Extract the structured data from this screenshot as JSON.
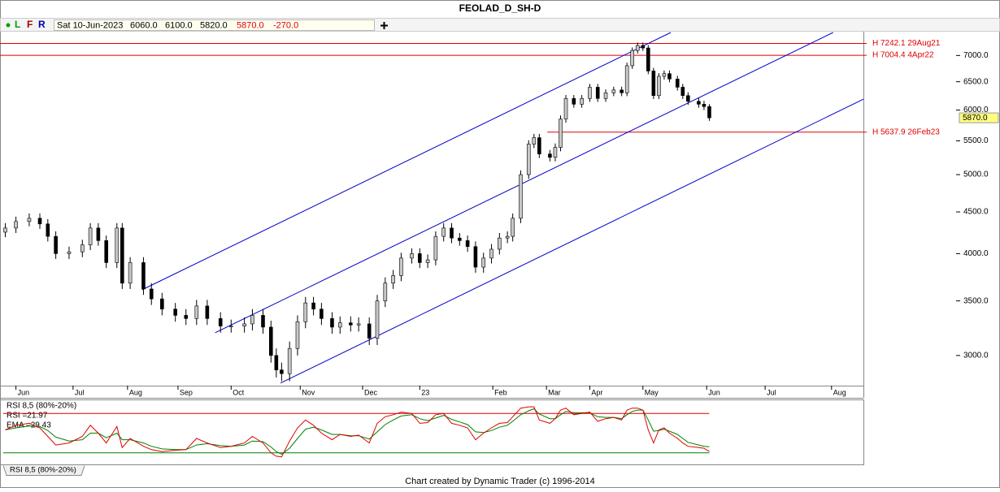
{
  "chart_data": [
    {
      "type": "candlestick",
      "title": "FEOLAD_D_SH-D",
      "toolbar": {
        "buttons": [
          "L",
          "F",
          "R"
        ],
        "date": "Sat 10-Jun-2023",
        "open": "6060.0",
        "high": "6100.0",
        "low": "5820.0",
        "close": "5870.0",
        "change": "-270.0"
      },
      "x": [
        -3,
        1,
        6,
        10,
        13,
        16,
        21,
        26,
        29,
        32,
        35,
        39,
        41,
        44,
        49,
        52,
        56,
        61,
        65,
        69,
        73,
        78,
        82,
        87,
        90,
        94,
        97,
        99,
        101,
        104,
        107,
        110,
        113,
        116,
        120,
        123,
        127,
        130,
        134,
        137,
        140,
        143,
        146,
        150,
        153,
        156,
        159,
        162,
        165,
        168,
        171,
        174,
        177,
        180,
        183,
        186,
        188,
        191,
        194,
        196,
        198,
        202,
        204,
        206,
        208,
        211,
        214,
        217,
        220,
        223,
        226,
        229,
        231,
        233,
        235,
        237,
        239,
        241,
        243,
        245,
        247,
        250,
        252,
        254,
        258,
        260,
        262
      ],
      "open": [
        4250,
        4300,
        4380,
        4420,
        4350,
        4200,
        4000,
        4020,
        4100,
        4300,
        4150,
        3900,
        4300,
        3680,
        3900,
        3620,
        3520,
        3420,
        3360,
        3330,
        3450,
        3330,
        3260,
        3260,
        3280,
        3360,
        3250,
        3000,
        2880,
        2850,
        3060,
        3300,
        3480,
        3420,
        3330,
        3250,
        3290,
        3270,
        3280,
        3150,
        3500,
        3680,
        3760,
        3950,
        4000,
        3900,
        3930,
        4200,
        4300,
        4180,
        4150,
        4080,
        3850,
        3950,
        4050,
        4180,
        4200,
        4420,
        5000,
        5450,
        5550,
        5300,
        5250,
        5400,
        5850,
        6200,
        6100,
        6200,
        6400,
        6200,
        6300,
        6350,
        6300,
        6800,
        7100,
        7200,
        7150,
        6700,
        6250,
        6600,
        6650,
        6550,
        6400,
        6250,
        6150,
        6100,
        6060
      ],
      "high": [
        4360,
        4440,
        4480,
        4480,
        4410,
        4260,
        4080,
        4160,
        4360,
        4360,
        4210,
        4360,
        4360,
        3960,
        3960,
        3680,
        3580,
        3480,
        3420,
        3510,
        3510,
        3390,
        3320,
        3340,
        3420,
        3420,
        3310,
        3060,
        2940,
        3120,
        3360,
        3540,
        3540,
        3480,
        3390,
        3350,
        3350,
        3340,
        3340,
        3560,
        3740,
        3820,
        4010,
        4060,
        4060,
        3990,
        4260,
        4360,
        4360,
        4240,
        4210,
        4140,
        4010,
        4110,
        4240,
        4260,
        4480,
        5060,
        5510,
        5610,
        5610,
        5360,
        5460,
        5910,
        6260,
        6260,
        6260,
        6460,
        6460,
        6360,
        6410,
        6410,
        6860,
        7160,
        7260,
        7260,
        7210,
        6760,
        6660,
        6710,
        6710,
        6610,
        6460,
        6310,
        6210,
        6160,
        6100
      ],
      "low": [
        4190,
        4240,
        4320,
        4290,
        4140,
        3940,
        3940,
        3960,
        4040,
        4090,
        3840,
        3840,
        3620,
        3620,
        3560,
        3460,
        3360,
        3300,
        3270,
        3270,
        3270,
        3200,
        3200,
        3200,
        3220,
        3190,
        2940,
        2820,
        2790,
        2790,
        3000,
        3240,
        3360,
        3270,
        3190,
        3190,
        3210,
        3210,
        3090,
        3090,
        3440,
        3620,
        3700,
        3890,
        3840,
        3840,
        3870,
        4140,
        4120,
        4090,
        4020,
        3790,
        3790,
        3890,
        3990,
        4120,
        4140,
        4360,
        4940,
        5390,
        5240,
        5190,
        5190,
        5340,
        5790,
        6040,
        6040,
        6140,
        6140,
        6140,
        6240,
        6240,
        6240,
        6740,
        7040,
        7090,
        6640,
        6190,
        6190,
        6540,
        6490,
        6340,
        6190,
        6090,
        6040,
        6000,
        5820
      ],
      "close": [
        4300,
        4380,
        4420,
        4350,
        4200,
        4000,
        4020,
        4100,
        4300,
        4150,
        3900,
        4300,
        3680,
        3900,
        3620,
        3520,
        3420,
        3360,
        3330,
        3450,
        3330,
        3260,
        3260,
        3280,
        3360,
        3250,
        3000,
        2880,
        2850,
        3060,
        3300,
        3480,
        3420,
        3330,
        3250,
        3290,
        3270,
        3280,
        3150,
        3500,
        3680,
        3760,
        3950,
        4000,
        3900,
        3930,
        4200,
        4300,
        4180,
        4150,
        4080,
        3850,
        3950,
        4050,
        4180,
        4200,
        4420,
        5000,
        5450,
        5550,
        5300,
        5250,
        5400,
        5850,
        6200,
        6100,
        6200,
        6400,
        6200,
        6300,
        6350,
        6300,
        6800,
        7100,
        7200,
        7150,
        6700,
        6250,
        6600,
        6650,
        6550,
        6400,
        6250,
        6150,
        6100,
        6060,
        5870
      ],
      "up_color": "#c8c8c8",
      "down_color": "#000000",
      "log_scale": true,
      "ylim": [
        2755,
        7470
      ],
      "yticks": [
        {
          "value": 3000,
          "label": "3000.0"
        },
        {
          "value": 3500,
          "label": "3500.0"
        },
        {
          "value": 4000,
          "label": "4000.0"
        },
        {
          "value": 4500,
          "label": "4500.0"
        },
        {
          "value": 5000,
          "label": "5000.0"
        },
        {
          "value": 5500,
          "label": "5500.0"
        },
        {
          "value": 6000,
          "label": "6000.0"
        },
        {
          "value": 6500,
          "label": "6500.0"
        },
        {
          "value": 7000,
          "label": "7000.0"
        }
      ],
      "xlim": [
        -5,
        320
      ],
      "xticks": [
        {
          "value": 1,
          "label": "Jun"
        },
        {
          "value": 22.5,
          "label": "Jul"
        },
        {
          "value": 43,
          "label": "Aug"
        },
        {
          "value": 62,
          "label": "Sep"
        },
        {
          "value": 82,
          "label": "Oct"
        },
        {
          "value": 108,
          "label": "Nov"
        },
        {
          "value": 131.5,
          "label": "Dec"
        },
        {
          "value": 153,
          "label": "23"
        },
        {
          "value": 180.5,
          "label": "Feb"
        },
        {
          "value": 200.7,
          "label": "Mar"
        },
        {
          "value": 217,
          "label": "Apr"
        },
        {
          "value": 237,
          "label": "May"
        },
        {
          "value": 261,
          "label": "Jun"
        },
        {
          "value": 283,
          "label": "Jul"
        },
        {
          "value": 308,
          "label": "Aug"
        }
      ],
      "levels": [
        {
          "value": 7242.1,
          "label": "H 7242.1 29Aug21",
          "color": "#e00000"
        },
        {
          "value": 7004.4,
          "label": "H 7004.4 4Apr22",
          "color": "#e00000"
        },
        {
          "value": 5637.9,
          "label": "H 5637.9 26Feb23",
          "color": "#e00000",
          "x_start": 201
        }
      ],
      "trendlines": [
        {
          "x": [
            48.5,
            247.5
          ],
          "y": [
            3612,
            7470
          ],
          "color": "#0000cc"
        },
        {
          "x": [
            76,
            308.6
          ],
          "y": [
            3199,
            7470
          ],
          "color": "#0000cc"
        },
        {
          "x": [
            100.6,
            320
          ],
          "y": [
            2775,
            6187
          ],
          "color": "#0000cc"
        }
      ],
      "last_price": {
        "value": 5870,
        "label": "5870.0"
      },
      "footer": "Chart created by Dynamic Trader  (c) 1996-2014"
    },
    {
      "type": "line",
      "title": "RSI 8,5 (80%-20%)",
      "ylim": [
        0,
        100
      ],
      "levels": [
        {
          "value": 80,
          "color": "#e00000"
        },
        {
          "value": 20,
          "color": "#008000"
        }
      ],
      "series": [
        {
          "name": "RSI",
          "label": "RSI =21.97",
          "color": "#e00000",
          "values": [
            55,
            62,
            65,
            58,
            45,
            32,
            35,
            45,
            62,
            50,
            35,
            60,
            28,
            42,
            30,
            25,
            22,
            24,
            25,
            42,
            35,
            28,
            30,
            35,
            45,
            35,
            20,
            15,
            14,
            38,
            58,
            70,
            62,
            50,
            40,
            48,
            45,
            47,
            35,
            65,
            75,
            78,
            82,
            80,
            65,
            66,
            78,
            80,
            65,
            62,
            58,
            40,
            50,
            58,
            65,
            66,
            75,
            88,
            90,
            90,
            70,
            65,
            72,
            85,
            88,
            78,
            80,
            82,
            68,
            72,
            74,
            70,
            85,
            88,
            88,
            85,
            55,
            35,
            55,
            58,
            50,
            42,
            35,
            30,
            28,
            27,
            21.97
          ]
        },
        {
          "name": "EMA",
          "label": "EMA =29.43",
          "color": "#008000",
          "values": [
            55,
            58,
            61,
            60,
            54,
            44,
            38,
            40,
            50,
            50,
            43,
            50,
            40,
            40,
            35,
            30,
            26,
            25,
            25,
            32,
            34,
            31,
            30,
            32,
            38,
            37,
            29,
            22,
            18,
            27,
            42,
            56,
            59,
            55,
            48,
            48,
            46,
            46,
            41,
            52,
            63,
            70,
            76,
            78,
            72,
            69,
            73,
            77,
            71,
            67,
            63,
            52,
            51,
            54,
            59,
            62,
            68,
            78,
            84,
            87,
            79,
            72,
            72,
            78,
            83,
            81,
            81,
            81,
            75,
            74,
            74,
            72,
            78,
            83,
            85,
            85,
            70,
            53,
            54,
            56,
            53,
            48,
            42,
            36,
            32,
            30,
            29.43
          ]
        }
      ]
    }
  ]
}
